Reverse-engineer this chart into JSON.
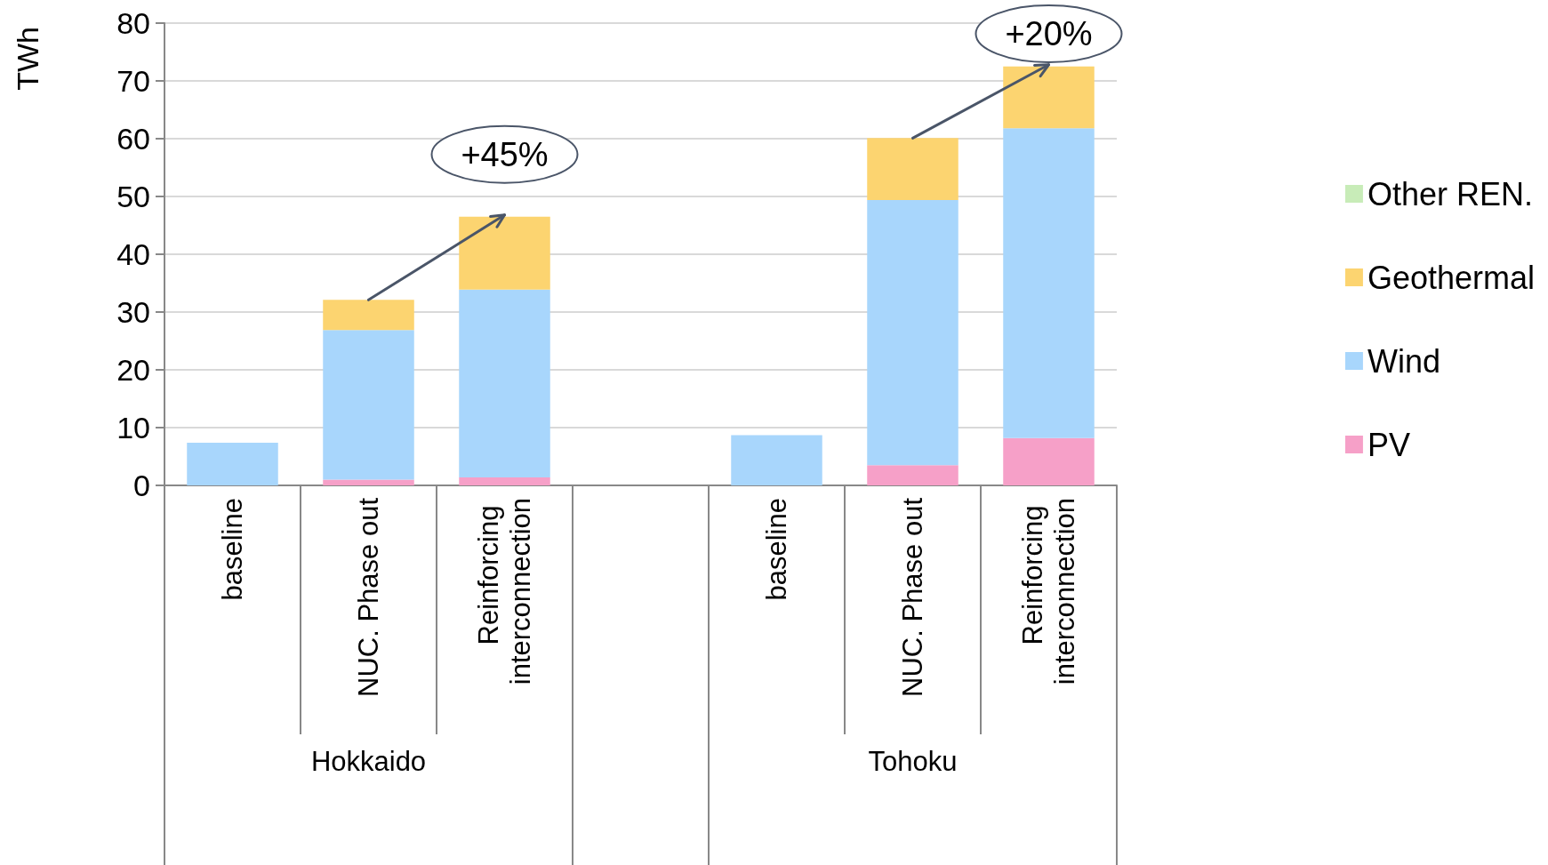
{
  "chart_data": {
    "type": "bar",
    "stacked": true,
    "ylabel": "TWh",
    "categories": [
      "baseline",
      "NUC. Phase out",
      "Reinforcing interconnection",
      null,
      "baseline",
      "NUC. Phase out",
      "Reinforcing interconnection"
    ],
    "series": [
      {
        "name": "PV",
        "color": "#f6a0c8",
        "values": [
          0,
          1.0,
          1.4,
          null,
          0,
          3.5,
          8.2
        ]
      },
      {
        "name": "Wind",
        "color": "#a8d6fc",
        "values": [
          7.4,
          25.9,
          32.5,
          null,
          8.7,
          45.9,
          53.6
        ]
      },
      {
        "name": "Geothermal",
        "color": "#fcd470",
        "values": [
          0,
          5.2,
          12.6,
          null,
          0,
          10.7,
          10.7
        ]
      },
      {
        "name": "Other REN.",
        "color": "#c8ecb8",
        "values": [
          0,
          0,
          0,
          null,
          0,
          0,
          0
        ]
      }
    ],
    "ylim": [
      0,
      80
    ],
    "yticks": [
      0,
      10,
      20,
      30,
      40,
      50,
      60,
      70,
      80
    ],
    "grid": "y",
    "legend": "right",
    "annotations": [
      {
        "text": "+45%",
        "y": 46.5
      },
      {
        "text": "+20%",
        "y": 72.5
      },
      "Hokkaido",
      "Tohoku"
    ]
  }
}
